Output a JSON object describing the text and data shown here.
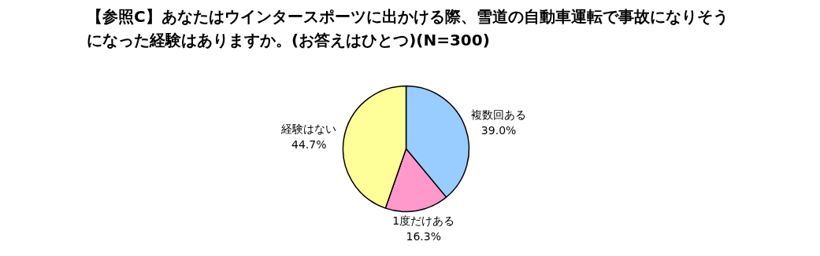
{
  "chart_data": {
    "type": "pie",
    "title": "【参照C】あなたはウインタースポーツに出かける際、雪道の自動車運転で事故になりそうになった経験はありますか。(お答えはひとつ)(N=300)",
    "categories": [
      "複数回ある",
      "1度だけある",
      "経験はない"
    ],
    "values": [
      39.0,
      16.3,
      44.7
    ],
    "colors": [
      "#99ccff",
      "#ff99cc",
      "#ffff99"
    ],
    "value_labels": [
      "39.0%",
      "16.3%",
      "44.7%"
    ]
  }
}
